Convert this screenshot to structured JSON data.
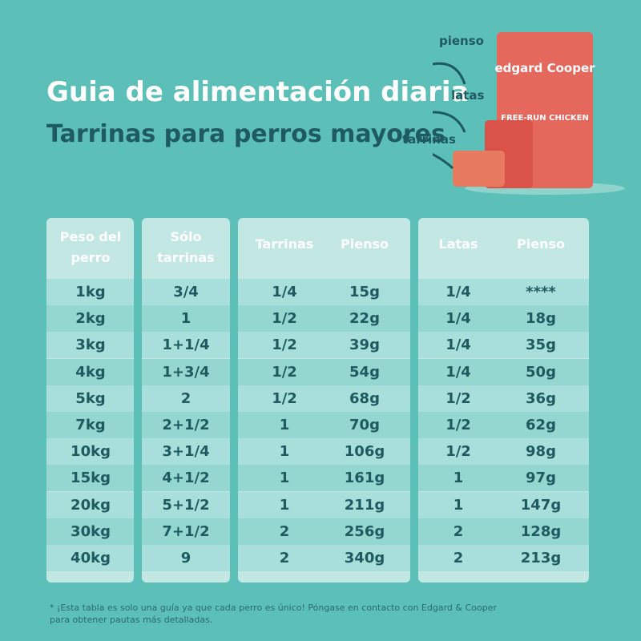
{
  "header": {
    "title": "Guia de alimentación diaria",
    "subtitle": "Tarrinas para perros mayores"
  },
  "product_labels": [
    "pienso",
    "latas",
    "tarrinas"
  ],
  "product_texts": {
    "brand": "edgard Cooper",
    "recipe": "FREE-RUN CHICKEN"
  },
  "table": {
    "columns": [
      "Peso del perro",
      "Sólo tarrinas",
      "Tarrinas",
      "Pienso",
      "Latas",
      "Pienso"
    ],
    "rows": [
      [
        "1kg",
        "3/4",
        "1/4",
        "15g",
        "1/4",
        "****"
      ],
      [
        "2kg",
        "1",
        "1/2",
        "22g",
        "1/4",
        "18g"
      ],
      [
        "3kg",
        "1+1/4",
        "1/2",
        "39g",
        "1/4",
        "35g"
      ],
      [
        "4kg",
        "1+3/4",
        "1/2",
        "54g",
        "1/4",
        "50g"
      ],
      [
        "5kg",
        "2",
        "1/2",
        "68g",
        "1/2",
        "36g"
      ],
      [
        "7kg",
        "2+1/2",
        "1",
        "70g",
        "1/2",
        "62g"
      ],
      [
        "10kg",
        "3+1/4",
        "1",
        "106g",
        "1/2",
        "98g"
      ],
      [
        "15kg",
        "4+1/2",
        "1",
        "161g",
        "1",
        "97g"
      ],
      [
        "20kg",
        "5+1/2",
        "1",
        "211g",
        "1",
        "147g"
      ],
      [
        "30kg",
        "7+1/2",
        "2",
        "256g",
        "2",
        "128g"
      ],
      [
        "40kg",
        "9",
        "2",
        "340g",
        "2",
        "213g"
      ]
    ]
  },
  "footnote": [
    "* ¡Esta tabla es solo una guía ya que cada perro es único! Póngase en contacto con Edgard & Cooper",
    "para obtener pautas más detalladas."
  ]
}
